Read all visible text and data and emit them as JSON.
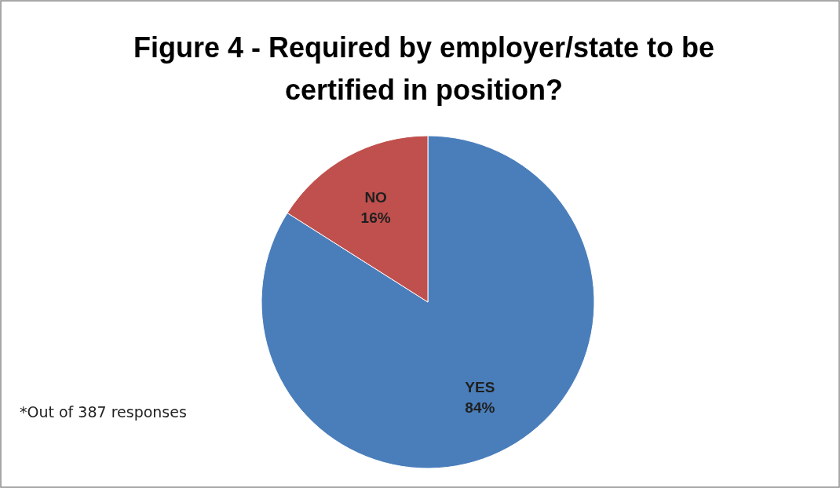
{
  "chart_data": {
    "type": "pie",
    "title": "Figure 4 - Required by employer/state to be certified in position?",
    "categories": [
      "YES",
      "NO"
    ],
    "values": [
      84,
      16
    ],
    "value_labels": [
      "84%",
      "16%"
    ],
    "colors": [
      "#4a7ebb",
      "#c0504d"
    ],
    "annotations": [
      "*Out of 387 responses"
    ]
  }
}
